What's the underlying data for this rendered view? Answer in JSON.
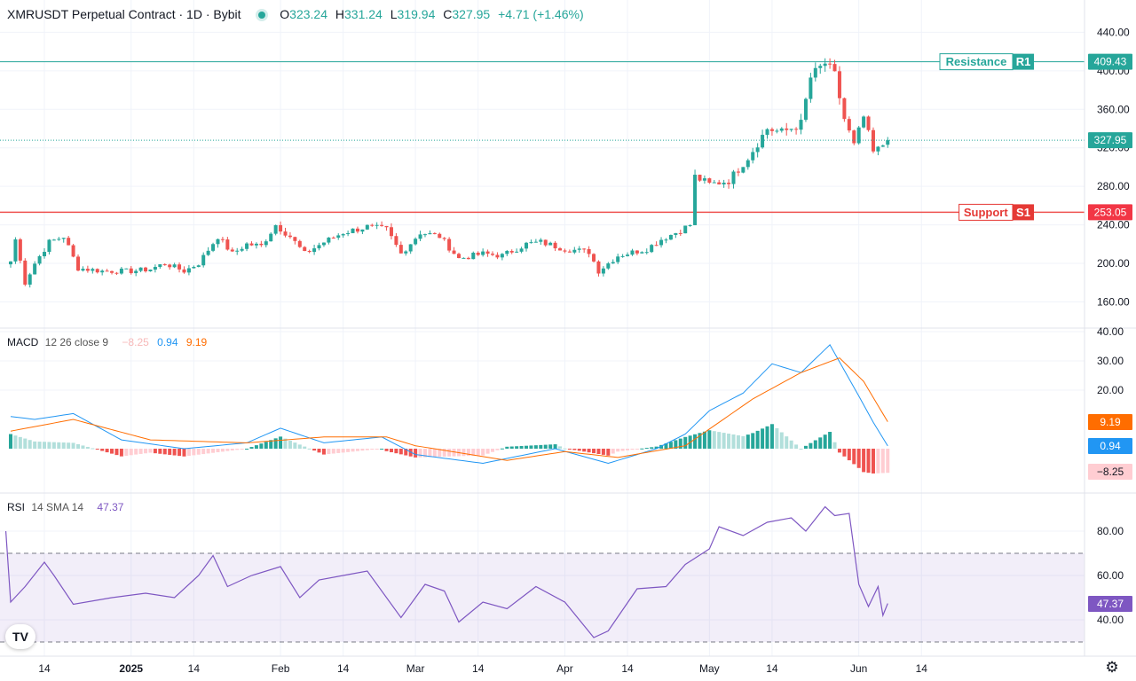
{
  "header": {
    "symbol": "XMRUSDT Perpetual Contract · 1D · Bybit",
    "o_label": "O",
    "o": "323.24",
    "h_label": "H",
    "h": "331.24",
    "l_label": "L",
    "l": "319.94",
    "c_label": "C",
    "c": "327.95",
    "change": "+4.71 (+1.46%)"
  },
  "colors": {
    "up": "#26a69a",
    "down": "#ef5350",
    "macd_line": "#2196f3",
    "signal_line": "#ff6d00",
    "rsi": "#7e57c2"
  },
  "levels": {
    "resistance": {
      "label": "Resistance",
      "tag": "R1",
      "value": 409.43,
      "value_label": "409.43"
    },
    "support": {
      "label": "Support",
      "tag": "S1",
      "value": 253.05,
      "value_label": "253.05"
    },
    "last_price_label": "327.95"
  },
  "macd_header": {
    "name": "MACD",
    "params": "12 26 close 9",
    "hist": "−8.25",
    "macd": "0.94",
    "signal": "9.19"
  },
  "macd_badges": {
    "signal": "9.19",
    "macd": "0.94",
    "hist": "−8.25"
  },
  "rsi_header": {
    "name": "RSI",
    "params": "14 SMA 14",
    "value": "47.37"
  },
  "rsi_badge": "47.37",
  "logo_text": "TV",
  "x_axis": [
    "14",
    "2025",
    "14",
    "Feb",
    "14",
    "Mar",
    "14",
    "Apr",
    "14",
    "May",
    "14",
    "Jun",
    "14"
  ],
  "chart_data": [
    {
      "type": "candlestick",
      "title": "XMRUSDT Perpetual Contract · 1D · Bybit",
      "ylim": [
        130,
        445
      ],
      "y_ticks": [
        "440.00",
        "400.00",
        "360.00",
        "320.00",
        "280.00",
        "240.00",
        "200.00",
        "160.00"
      ],
      "x_range": [
        "2024-12-07",
        "2025-06-07"
      ],
      "anchors": [
        {
          "date": "2024-12-07",
          "close": 202
        },
        {
          "date": "2024-12-08",
          "close": 225
        },
        {
          "date": "2024-12-10",
          "close": 180
        },
        {
          "date": "2024-12-12",
          "close": 200
        },
        {
          "date": "2024-12-15",
          "close": 222
        },
        {
          "date": "2024-12-18",
          "close": 228
        },
        {
          "date": "2024-12-21",
          "close": 195
        },
        {
          "date": "2024-12-26",
          "close": 192
        },
        {
          "date": "2025-01-01",
          "close": 192
        },
        {
          "date": "2025-01-05",
          "close": 194
        },
        {
          "date": "2025-01-08",
          "close": 200
        },
        {
          "date": "2025-01-12",
          "close": 192
        },
        {
          "date": "2025-01-15",
          "close": 200
        },
        {
          "date": "2025-01-19",
          "close": 228
        },
        {
          "date": "2025-01-22",
          "close": 210
        },
        {
          "date": "2025-01-25",
          "close": 220
        },
        {
          "date": "2025-01-28",
          "close": 218
        },
        {
          "date": "2025-01-31",
          "close": 240
        },
        {
          "date": "2025-02-03",
          "close": 228
        },
        {
          "date": "2025-02-06",
          "close": 210
        },
        {
          "date": "2025-02-10",
          "close": 222
        },
        {
          "date": "2025-02-14",
          "close": 232
        },
        {
          "date": "2025-02-19",
          "close": 238
        },
        {
          "date": "2025-02-23",
          "close": 235
        },
        {
          "date": "2025-02-26",
          "close": 210
        },
        {
          "date": "2025-03-02",
          "close": 232
        },
        {
          "date": "2025-03-06",
          "close": 228
        },
        {
          "date": "2025-03-10",
          "close": 205
        },
        {
          "date": "2025-03-15",
          "close": 210
        },
        {
          "date": "2025-03-19",
          "close": 208
        },
        {
          "date": "2025-03-24",
          "close": 220
        },
        {
          "date": "2025-03-27",
          "close": 222
        },
        {
          "date": "2025-04-01",
          "close": 215
        },
        {
          "date": "2025-04-06",
          "close": 212
        },
        {
          "date": "2025-04-08",
          "close": 192
        },
        {
          "date": "2025-04-12",
          "close": 208
        },
        {
          "date": "2025-04-18",
          "close": 215
        },
        {
          "date": "2025-04-21",
          "close": 225
        },
        {
          "date": "2025-04-24",
          "close": 232
        },
        {
          "date": "2025-04-27",
          "close": 240
        },
        {
          "date": "2025-04-28",
          "close": 290
        },
        {
          "date": "2025-05-01",
          "close": 282
        },
        {
          "date": "2025-05-05",
          "close": 286
        },
        {
          "date": "2025-05-09",
          "close": 310
        },
        {
          "date": "2025-05-13",
          "close": 340
        },
        {
          "date": "2025-05-16",
          "close": 336
        },
        {
          "date": "2025-05-20",
          "close": 345
        },
        {
          "date": "2025-05-22",
          "close": 393
        },
        {
          "date": "2025-05-25",
          "close": 408
        },
        {
          "date": "2025-05-27",
          "close": 395
        },
        {
          "date": "2025-05-29",
          "close": 350
        },
        {
          "date": "2025-05-31",
          "close": 322
        },
        {
          "date": "2025-06-02",
          "close": 352
        },
        {
          "date": "2025-06-04",
          "close": 315
        },
        {
          "date": "2025-06-05",
          "close": 318
        },
        {
          "date": "2025-06-07",
          "close": 327.95
        }
      ],
      "ohlc_last": {
        "open": 323.24,
        "high": 331.24,
        "low": 319.94,
        "close": 327.95
      },
      "horizontal_levels": [
        {
          "name": "Resistance R1",
          "value": 409.43
        },
        {
          "name": "Support S1",
          "value": 253.05
        }
      ]
    },
    {
      "type": "line",
      "title": "MACD 12 26 close 9",
      "ylim": [
        -13,
        41
      ],
      "y_ticks": [
        "40.00",
        "30.00",
        "20.00"
      ],
      "series": [
        {
          "name": "MACD",
          "points": [
            {
              "date": "2024-12-07",
              "value": 11
            },
            {
              "date": "2024-12-12",
              "value": 10
            },
            {
              "date": "2024-12-20",
              "value": 12
            },
            {
              "date": "2024-12-30",
              "value": 3
            },
            {
              "date": "2025-01-12",
              "value": 0
            },
            {
              "date": "2025-01-25",
              "value": 2
            },
            {
              "date": "2025-02-01",
              "value": 7
            },
            {
              "date": "2025-02-10",
              "value": 2
            },
            {
              "date": "2025-02-22",
              "value": 4
            },
            {
              "date": "2025-03-01",
              "value": -2
            },
            {
              "date": "2025-03-15",
              "value": -5
            },
            {
              "date": "2025-03-30",
              "value": 0
            },
            {
              "date": "2025-04-10",
              "value": -5
            },
            {
              "date": "2025-04-20",
              "value": 0
            },
            {
              "date": "2025-04-26",
              "value": 5
            },
            {
              "date": "2025-05-01",
              "value": 13
            },
            {
              "date": "2025-05-08",
              "value": 19
            },
            {
              "date": "2025-05-14",
              "value": 29
            },
            {
              "date": "2025-05-20",
              "value": 26
            },
            {
              "date": "2025-05-26",
              "value": 35.5
            },
            {
              "date": "2025-06-01",
              "value": 18
            },
            {
              "date": "2025-06-04",
              "value": 9
            },
            {
              "date": "2025-06-07",
              "value": 0.94
            }
          ]
        },
        {
          "name": "Signal",
          "points": [
            {
              "date": "2024-12-07",
              "value": 6
            },
            {
              "date": "2024-12-20",
              "value": 10
            },
            {
              "date": "2025-01-05",
              "value": 3
            },
            {
              "date": "2025-01-25",
              "value": 2
            },
            {
              "date": "2025-02-10",
              "value": 4
            },
            {
              "date": "2025-02-23",
              "value": 4
            },
            {
              "date": "2025-03-01",
              "value": 1
            },
            {
              "date": "2025-03-20",
              "value": -4
            },
            {
              "date": "2025-04-01",
              "value": -1
            },
            {
              "date": "2025-04-12",
              "value": -3
            },
            {
              "date": "2025-04-26",
              "value": 1
            },
            {
              "date": "2025-05-03",
              "value": 9
            },
            {
              "date": "2025-05-10",
              "value": 17
            },
            {
              "date": "2025-05-20",
              "value": 26
            },
            {
              "date": "2025-05-28",
              "value": 31
            },
            {
              "date": "2025-06-02",
              "value": 23
            },
            {
              "date": "2025-06-07",
              "value": 9.19
            }
          ]
        }
      ],
      "histogram_last": -8.25
    },
    {
      "type": "line",
      "title": "RSI 14 SMA 14",
      "ylim": [
        20,
        100
      ],
      "y_ticks": [
        "80.00",
        "60.00",
        "40.00"
      ],
      "bands": [
        70,
        30
      ],
      "series": [
        {
          "name": "RSI",
          "points": [
            {
              "date": "2024-12-06",
              "value": 80
            },
            {
              "date": "2024-12-07",
              "value": 48
            },
            {
              "date": "2024-12-10",
              "value": 55
            },
            {
              "date": "2024-12-14",
              "value": 66
            },
            {
              "date": "2024-12-16",
              "value": 60
            },
            {
              "date": "2024-12-20",
              "value": 47
            },
            {
              "date": "2024-12-28",
              "value": 50
            },
            {
              "date": "2025-01-04",
              "value": 52
            },
            {
              "date": "2025-01-10",
              "value": 50
            },
            {
              "date": "2025-01-15",
              "value": 60
            },
            {
              "date": "2025-01-18",
              "value": 69
            },
            {
              "date": "2025-01-21",
              "value": 55
            },
            {
              "date": "2025-01-26",
              "value": 60
            },
            {
              "date": "2025-02-01",
              "value": 64
            },
            {
              "date": "2025-02-05",
              "value": 50
            },
            {
              "date": "2025-02-09",
              "value": 58
            },
            {
              "date": "2025-02-14",
              "value": 60
            },
            {
              "date": "2025-02-19",
              "value": 62
            },
            {
              "date": "2025-02-26",
              "value": 41
            },
            {
              "date": "2025-03-03",
              "value": 56
            },
            {
              "date": "2025-03-07",
              "value": 53
            },
            {
              "date": "2025-03-10",
              "value": 39
            },
            {
              "date": "2025-03-15",
              "value": 48
            },
            {
              "date": "2025-03-20",
              "value": 45
            },
            {
              "date": "2025-03-26",
              "value": 55
            },
            {
              "date": "2025-04-01",
              "value": 48
            },
            {
              "date": "2025-04-07",
              "value": 32
            },
            {
              "date": "2025-04-10",
              "value": 35
            },
            {
              "date": "2025-04-16",
              "value": 54
            },
            {
              "date": "2025-04-22",
              "value": 55
            },
            {
              "date": "2025-04-26",
              "value": 65
            },
            {
              "date": "2025-05-01",
              "value": 72
            },
            {
              "date": "2025-05-03",
              "value": 82
            },
            {
              "date": "2025-05-08",
              "value": 78
            },
            {
              "date": "2025-05-13",
              "value": 84
            },
            {
              "date": "2025-05-18",
              "value": 86
            },
            {
              "date": "2025-05-21",
              "value": 80
            },
            {
              "date": "2025-05-25",
              "value": 91
            },
            {
              "date": "2025-05-27",
              "value": 87
            },
            {
              "date": "2025-05-30",
              "value": 88
            },
            {
              "date": "2025-06-01",
              "value": 56
            },
            {
              "date": "2025-06-03",
              "value": 46
            },
            {
              "date": "2025-06-05",
              "value": 55
            },
            {
              "date": "2025-06-06",
              "value": 42
            },
            {
              "date": "2025-06-07",
              "value": 47.37
            }
          ]
        }
      ]
    }
  ]
}
